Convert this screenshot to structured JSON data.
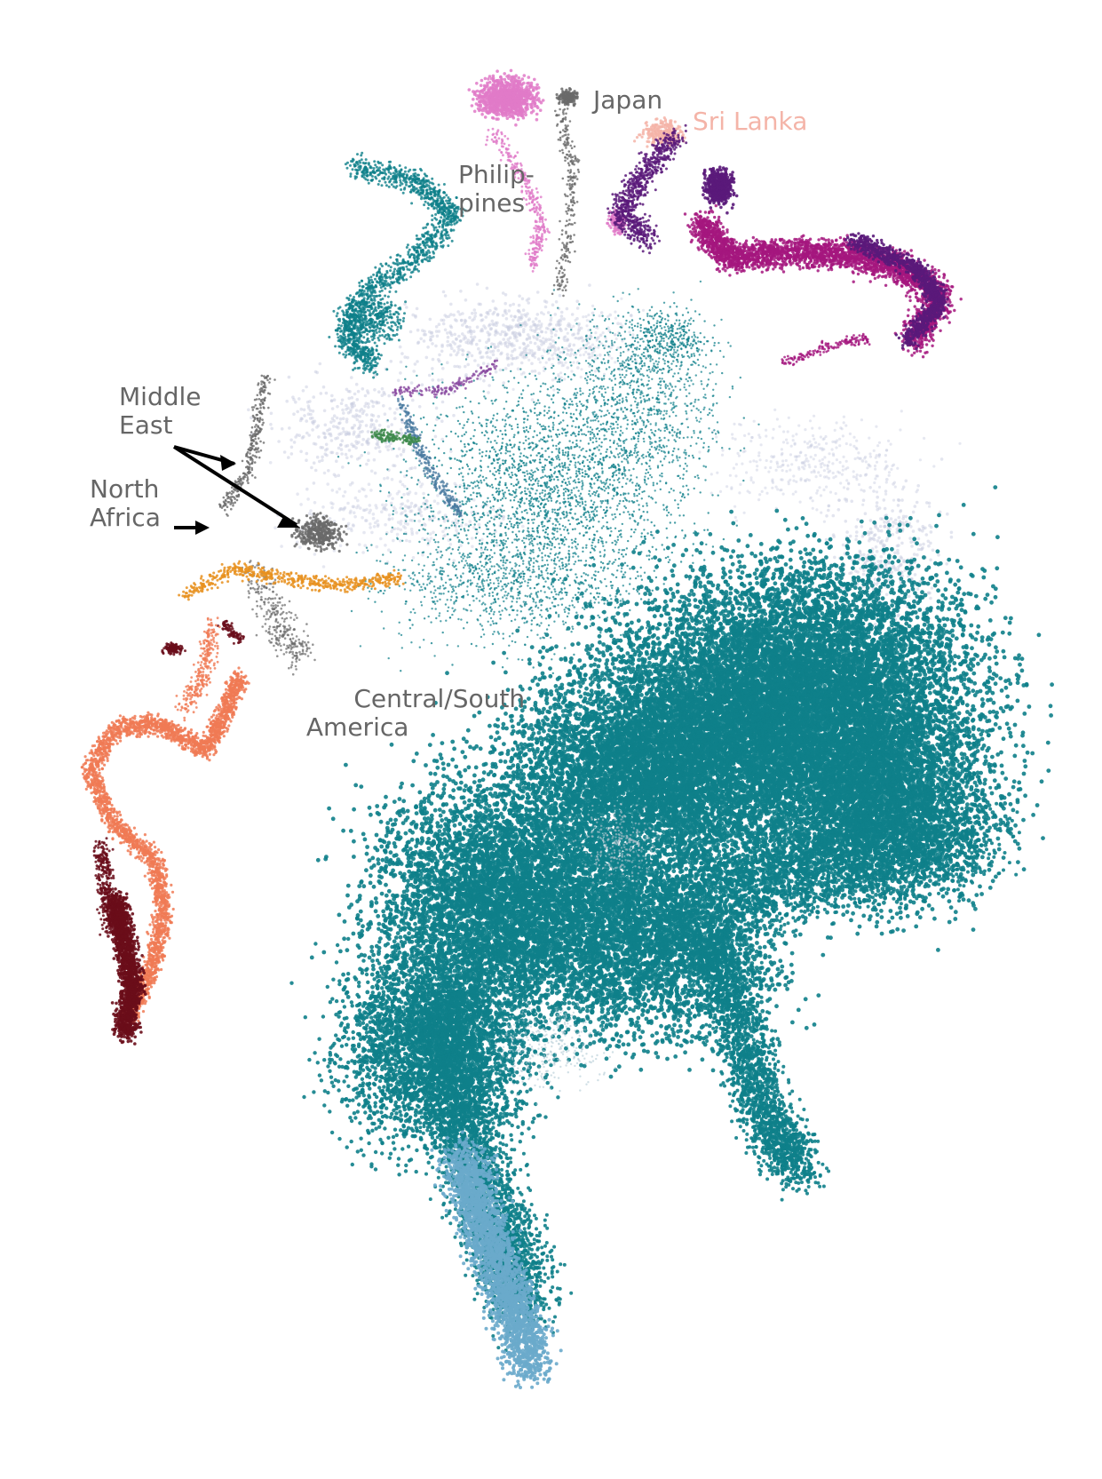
{
  "chart_data": {
    "type": "scatter",
    "title": "",
    "xlabel": "",
    "ylabel": "",
    "axes_visible": false,
    "grid": false,
    "legend": "none",
    "point_style": "tiny dots, dense scatter (projection embedding)",
    "colors": {
      "teal": "#0e7f8a",
      "light_blue": "#6aaacb",
      "lavender": "#c8cce0",
      "purple": "#5a1a7a",
      "magenta": "#a4167e",
      "pink": "#e07ac8",
      "gray": "#6a6a6a",
      "salmon": "#f07a55",
      "orange": "#e8901f",
      "dark_red": "#6a0d1a",
      "green": "#3e8a4c",
      "label_gray": "#666666",
      "label_pink": "#f4b4a8"
    },
    "annotations": [
      {
        "id": "japan",
        "lines": [
          "Japan"
        ],
        "color": "#666666"
      },
      {
        "id": "sri-lanka",
        "lines": [
          "Sri Lanka"
        ],
        "color": "#f4b4a8"
      },
      {
        "id": "philippines",
        "lines": [
          "Philip-",
          "pines"
        ],
        "color": "#666666"
      },
      {
        "id": "middle-east",
        "lines": [
          "Middle",
          "East"
        ],
        "color": "#666666"
      },
      {
        "id": "north-africa",
        "lines": [
          "North",
          "Africa"
        ],
        "color": "#666666"
      },
      {
        "id": "central-south-america",
        "lines": [
          "Central/South",
          " America"
        ],
        "color": "#666666"
      }
    ]
  }
}
